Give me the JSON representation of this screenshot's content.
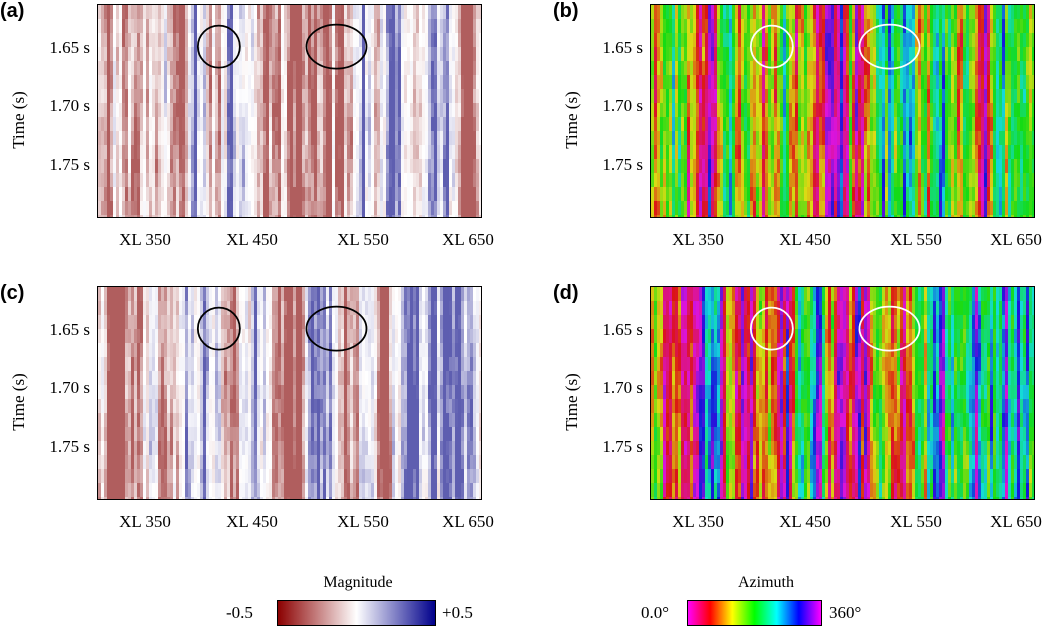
{
  "panels": [
    {
      "label": "(a)",
      "kind": "magnitude",
      "seed": 11
    },
    {
      "label": "(b)",
      "kind": "azimuth",
      "seed": 23
    },
    {
      "label": "(c)",
      "kind": "magnitude",
      "seed": 37
    },
    {
      "label": "(d)",
      "kind": "azimuth",
      "seed": 49
    }
  ],
  "axes": {
    "ylabel": "Time (s)",
    "yticks": [
      "1.65 s",
      "1.70 s",
      "1.75 s"
    ],
    "xticks": [
      "XL 350",
      "XL 450",
      "XL 550",
      "XL 650"
    ]
  },
  "colorbars": {
    "magnitude": {
      "title": "Magnitude",
      "min_label": "-0.5",
      "max_label": "+0.5",
      "colors": [
        "#8b0000",
        "#ffffff",
        "#00008b"
      ]
    },
    "azimuth": {
      "title": "Azimuth",
      "min_label": "0.0°",
      "max_label": "360°",
      "colors": [
        "#ff00ff",
        "#ff0000",
        "#ffff00",
        "#00ff00",
        "#00ffff",
        "#0000ff",
        "#ff00ff"
      ]
    }
  },
  "chart_data": [
    {
      "type": "heatmap",
      "title": "",
      "quantity": "Magnitude",
      "xlabel": "",
      "ylabel": "Time (s)",
      "value_range": [
        -0.5,
        0.5
      ],
      "x_range": [
        "XL 350",
        "XL 650"
      ],
      "y_range_s": [
        1.6,
        1.8
      ]
    },
    {
      "type": "heatmap",
      "title": "",
      "quantity": "Azimuth",
      "xlabel": "",
      "ylabel": "Time (s)",
      "value_range_deg": [
        0,
        360
      ],
      "x_range": [
        "XL 350",
        "XL 650"
      ],
      "y_range_s": [
        1.6,
        1.8
      ]
    },
    {
      "type": "heatmap",
      "title": "",
      "quantity": "Magnitude",
      "xlabel": "",
      "ylabel": "Time (s)",
      "value_range": [
        -0.5,
        0.5
      ],
      "x_range": [
        "XL 350",
        "XL 650"
      ],
      "y_range_s": [
        1.6,
        1.8
      ]
    },
    {
      "type": "heatmap",
      "title": "",
      "quantity": "Azimuth",
      "xlabel": "",
      "ylabel": "Time (s)",
      "value_range_deg": [
        0,
        360
      ],
      "x_range": [
        "XL 350",
        "XL 650"
      ],
      "y_range_s": [
        1.6,
        1.8
      ]
    }
  ],
  "annotations": {
    "circle_color_magnitude": "#000000",
    "circle_color_azimuth": "#ffffff",
    "ellipses_at_XL": [
      433,
      543
    ],
    "ellipses_at_time_s": 1.65
  }
}
